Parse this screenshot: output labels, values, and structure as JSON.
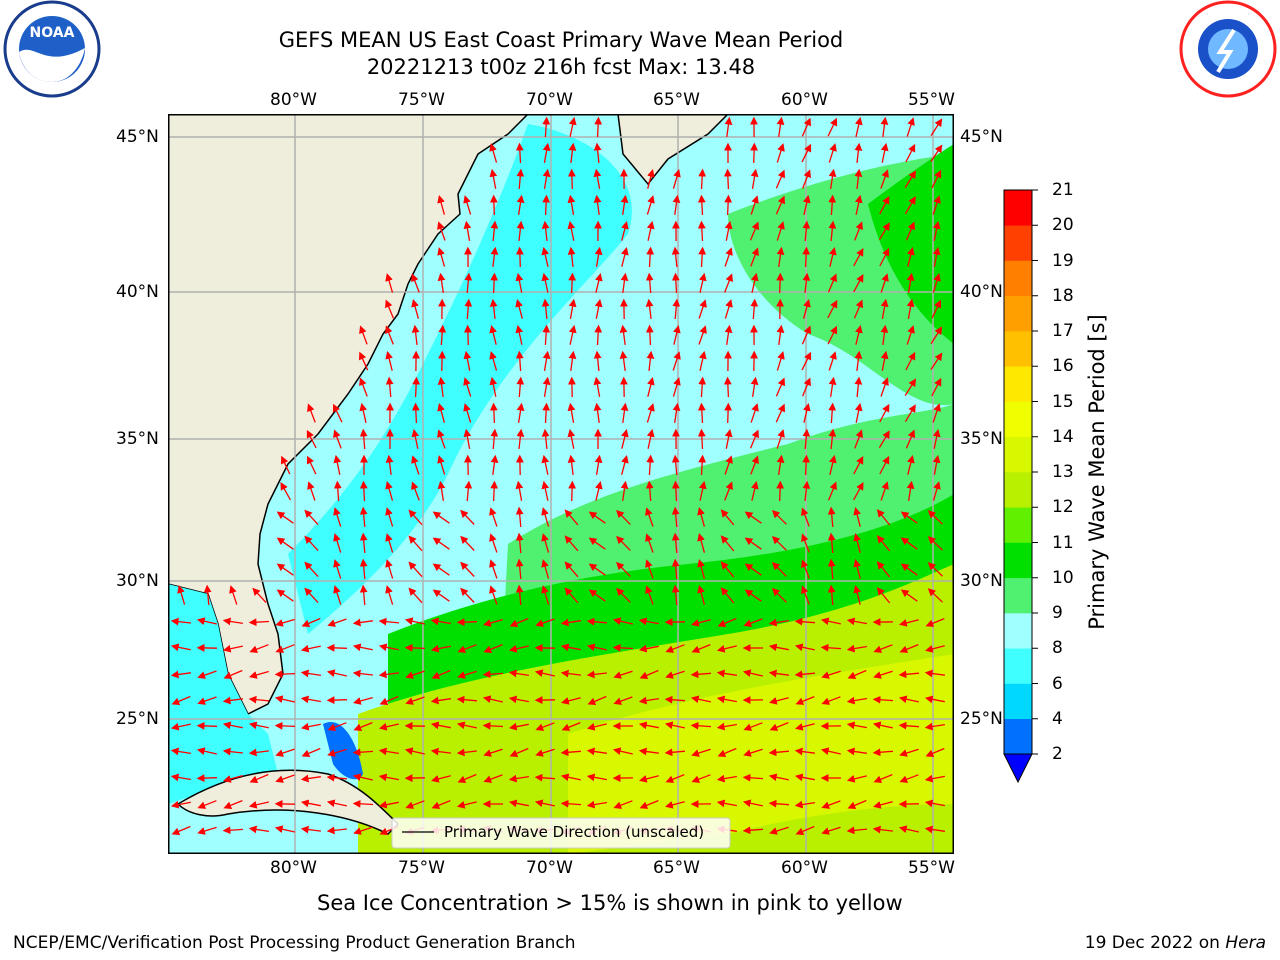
{
  "header": {
    "title_line1": "GEFS MEAN US East Coast Primary Wave Mean Period",
    "title_line2": "20221213 t00z 216h fcst   Max: 13.48"
  },
  "logos": {
    "noaa": {
      "text": "NOAA",
      "icon": "noaa-logo-icon"
    },
    "nws": {
      "icon": "nws-logo-icon"
    }
  },
  "map": {
    "lon_labels": [
      "80°W",
      "75°W",
      "70°W",
      "65°W",
      "60°W",
      "55°W"
    ],
    "lat_labels": [
      "45°N",
      "40°N",
      "35°N",
      "30°N",
      "25°N"
    ],
    "legend_label": "Primary Wave Direction (unscaled)",
    "colors": {
      "land": "#efeedc",
      "arrow": "#ff0000",
      "grid": "#b0b0b0"
    }
  },
  "colorbar": {
    "label": "Primary Wave Mean Period [s]",
    "ticks": [
      "2",
      "4",
      "6",
      "8",
      "9",
      "10",
      "11",
      "12",
      "13",
      "14",
      "15",
      "16",
      "17",
      "18",
      "19",
      "20",
      "21"
    ],
    "colors": [
      "#0070ff",
      "#00d8ff",
      "#40ffff",
      "#a0ffff",
      "#50f070",
      "#00e000",
      "#60f000",
      "#b8f000",
      "#d8f800",
      "#f0ff00",
      "#ffe800",
      "#ffc000",
      "#ffa000",
      "#ff8000",
      "#ff4000",
      "#ff0000"
    ],
    "under_color": "#0000ff"
  },
  "caption": "Sea Ice Concentration > 15% is shown in pink to yellow",
  "footer": {
    "left": "NCEP/EMC/Verification Post Processing Product Generation Branch",
    "right_date": "19 Dec 2022 on ",
    "right_machine": "Hera"
  }
}
